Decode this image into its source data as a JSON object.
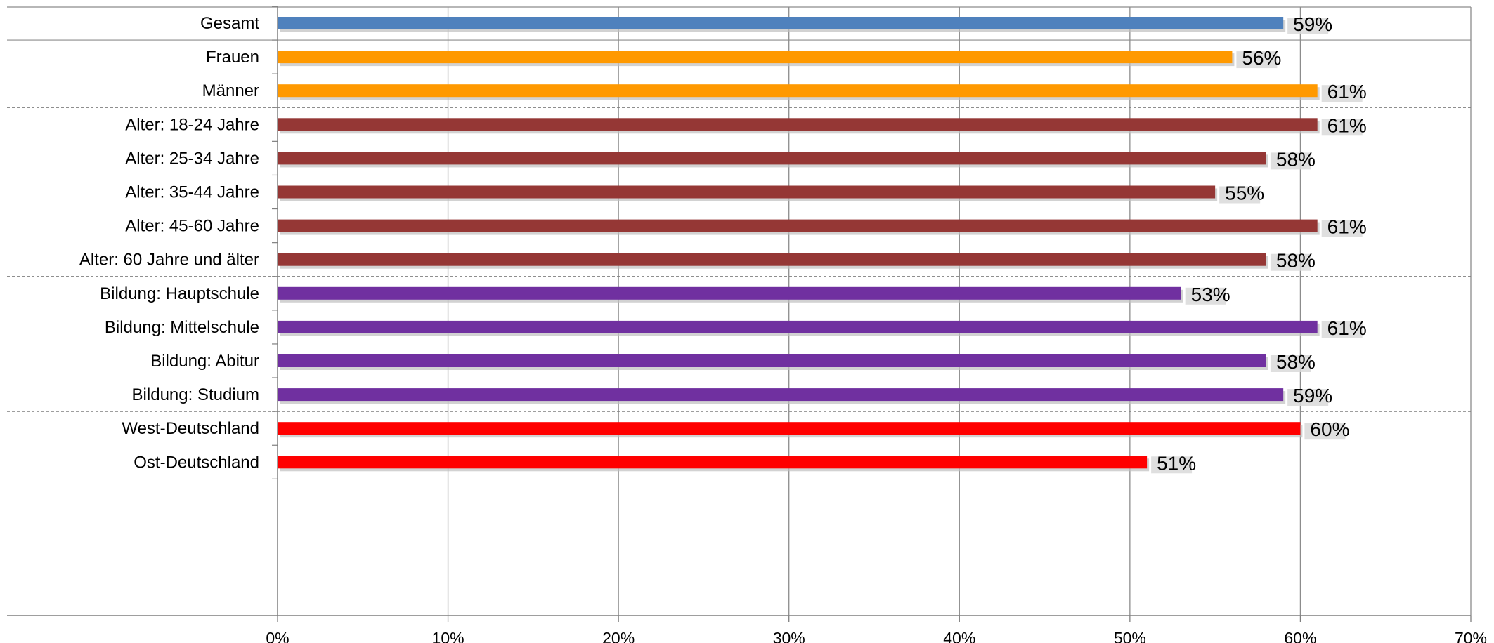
{
  "chart_data": {
    "type": "bar",
    "orientation": "horizontal",
    "categories": [
      "Gesamt",
      "Frauen",
      "Männer",
      "Alter: 18-24 Jahre",
      "Alter: 25-34 Jahre",
      "Alter: 35-44 Jahre",
      "Alter: 45-60 Jahre",
      "Alter: 60 Jahre und älter",
      "Bildung: Hauptschule",
      "Bildung: Mittelschule",
      "Bildung: Abitur",
      "Bildung: Studium",
      "West-Deutschland",
      "Ost-Deutschland"
    ],
    "values": [
      59,
      56,
      61,
      61,
      58,
      55,
      61,
      58,
      53,
      61,
      58,
      59,
      60,
      51
    ],
    "value_labels": [
      "59%",
      "56%",
      "61%",
      "61%",
      "58%",
      "55%",
      "61%",
      "58%",
      "53%",
      "61%",
      "58%",
      "59%",
      "60%",
      "51%"
    ],
    "bar_colors": [
      "#4f81bd",
      "#ff9900",
      "#ff9900",
      "#953735",
      "#953735",
      "#953735",
      "#953735",
      "#953735",
      "#7030a0",
      "#7030a0",
      "#7030a0",
      "#7030a0",
      "#ff0000",
      "#ff0000"
    ],
    "groups": [
      {
        "categories": [
          "Gesamt"
        ],
        "color": "#4f81bd"
      },
      {
        "categories": [
          "Frauen",
          "Männer"
        ],
        "color": "#ff9900"
      },
      {
        "categories": [
          "Alter: 18-24 Jahre",
          "Alter: 25-34 Jahre",
          "Alter: 35-44 Jahre",
          "Alter: 45-60 Jahre",
          "Alter: 60 Jahre und älter"
        ],
        "color": "#953735"
      },
      {
        "categories": [
          "Bildung: Hauptschule",
          "Bildung: Mittelschule",
          "Bildung: Abitur",
          "Bildung: Studium"
        ],
        "color": "#7030a0"
      },
      {
        "categories": [
          "West-Deutschland",
          "Ost-Deutschland"
        ],
        "color": "#ff0000"
      }
    ],
    "xlim": [
      0,
      70
    ],
    "xticks": [
      0,
      10,
      20,
      30,
      40,
      50,
      60,
      70
    ],
    "xtick_labels": [
      "0%",
      "10%",
      "20%",
      "30%",
      "40%",
      "50%",
      "60%",
      "70%"
    ],
    "title": "",
    "xlabel": "",
    "ylabel": "",
    "grid": true,
    "legend": "none"
  }
}
